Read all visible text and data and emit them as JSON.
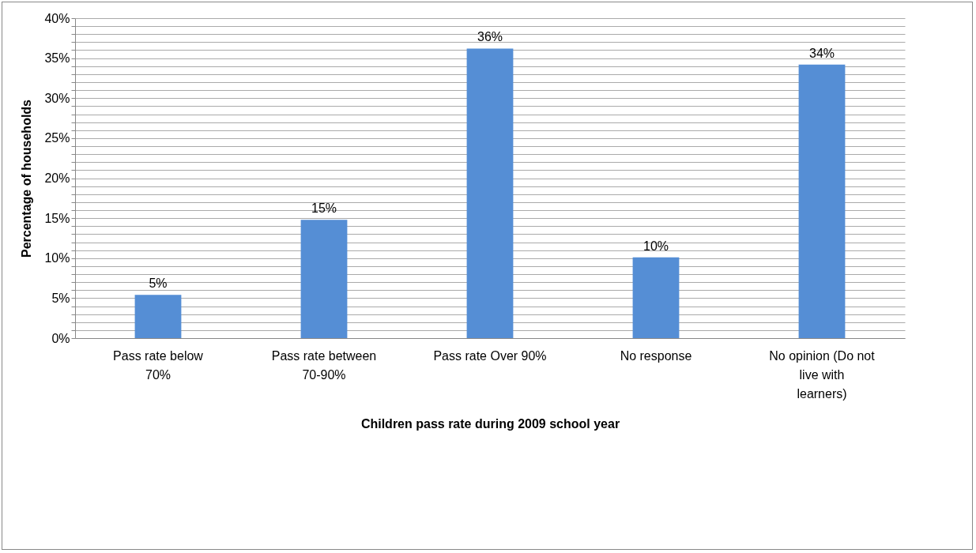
{
  "chart_data": {
    "type": "bar",
    "xlabel": "Children pass rate during 2009 school year",
    "ylabel": "Percentage of households",
    "categories": [
      "Pass rate below 70%",
      "Pass rate between 70-90%",
      "Pass rate Over 90%",
      "No response",
      "No opinion (Do not live with learners)"
    ],
    "values": [
      5.4,
      14.8,
      36.2,
      10.1,
      34.2
    ],
    "value_labels": [
      "5%",
      "15%",
      "36%",
      "10%",
      "34%"
    ],
    "color": "#558ed5",
    "ylim": [
      0,
      40
    ],
    "yticks": [
      {
        "value": 0,
        "label": "0%"
      },
      {
        "value": 1,
        "label": null
      },
      {
        "value": 2,
        "label": null
      },
      {
        "value": 3,
        "label": null
      },
      {
        "value": 4,
        "label": null
      },
      {
        "value": 5,
        "label": "5%"
      },
      {
        "value": 6,
        "label": null
      },
      {
        "value": 7,
        "label": null
      },
      {
        "value": 8,
        "label": null
      },
      {
        "value": 9,
        "label": null
      },
      {
        "value": 10,
        "label": "10%"
      },
      {
        "value": 11,
        "label": null
      },
      {
        "value": 12,
        "label": null
      },
      {
        "value": 13,
        "label": null
      },
      {
        "value": 14,
        "label": null
      },
      {
        "value": 15,
        "label": "15%"
      },
      {
        "value": 16,
        "label": null
      },
      {
        "value": 17,
        "label": null
      },
      {
        "value": 18,
        "label": null
      },
      {
        "value": 19,
        "label": null
      },
      {
        "value": 20,
        "label": "20%"
      },
      {
        "value": 21,
        "label": null
      },
      {
        "value": 22,
        "label": null
      },
      {
        "value": 23,
        "label": null
      },
      {
        "value": 24,
        "label": null
      },
      {
        "value": 25,
        "label": "25%"
      },
      {
        "value": 26,
        "label": null
      },
      {
        "value": 27,
        "label": null
      },
      {
        "value": 28,
        "label": null
      },
      {
        "value": 29,
        "label": null
      },
      {
        "value": 30,
        "label": "30%"
      },
      {
        "value": 31,
        "label": null
      },
      {
        "value": 32,
        "label": null
      },
      {
        "value": 33,
        "label": null
      },
      {
        "value": 34,
        "label": null
      },
      {
        "value": 35,
        "label": "35%"
      },
      {
        "value": 36,
        "label": null
      },
      {
        "value": 37,
        "label": null
      },
      {
        "value": 38,
        "label": null
      },
      {
        "value": 39,
        "label": null
      },
      {
        "value": 40,
        "label": "40%"
      }
    ],
    "grid": true
  }
}
